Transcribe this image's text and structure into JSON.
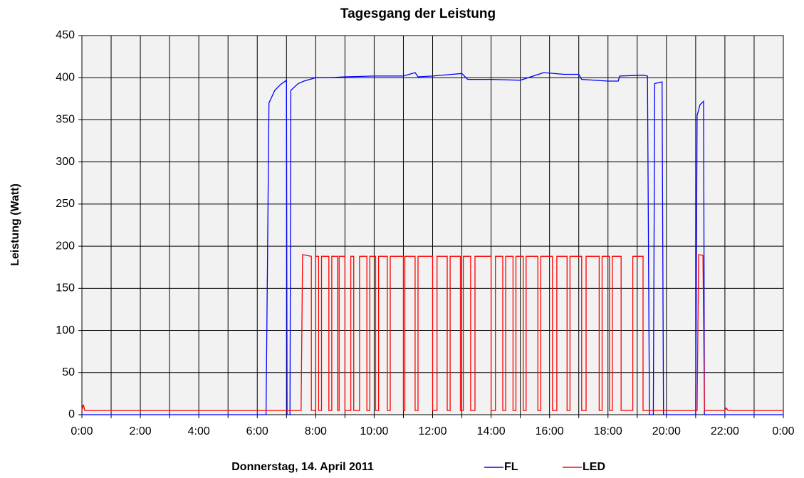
{
  "chart_data": {
    "type": "line",
    "title": "Tagesgang der Leistung",
    "xlabel": "Donnerstag, 14. April 2011",
    "ylabel": "Leistung (Watt)",
    "xlim": [
      0,
      24
    ],
    "ylim": [
      0,
      450
    ],
    "xticks": [
      {
        "value": 0,
        "label": "0:00"
      },
      {
        "value": 2,
        "label": "2:00"
      },
      {
        "value": 4,
        "label": "4:00"
      },
      {
        "value": 6,
        "label": "6:00"
      },
      {
        "value": 8,
        "label": "8:00"
      },
      {
        "value": 10,
        "label": "10:00"
      },
      {
        "value": 12,
        "label": "12:00"
      },
      {
        "value": 14,
        "label": "14:00"
      },
      {
        "value": 16,
        "label": "16:00"
      },
      {
        "value": 18,
        "label": "18:00"
      },
      {
        "value": 20,
        "label": "20:00"
      },
      {
        "value": 22,
        "label": "22:00"
      },
      {
        "value": 24,
        "label": "0:00"
      }
    ],
    "xminor": [
      1,
      3,
      5,
      7,
      9,
      11,
      13,
      15,
      17,
      19,
      21,
      23
    ],
    "yticks": [
      0,
      50,
      100,
      150,
      200,
      250,
      300,
      350,
      400,
      450
    ],
    "grid": true,
    "legend": "bottom",
    "series": [
      {
        "name": "FL",
        "color": "#0000ff",
        "x": [
          0,
          6.3,
          6.4,
          6.6,
          6.8,
          7.0,
          7.02,
          7.12,
          7.15,
          7.4,
          7.6,
          8.0,
          8.5,
          9.0,
          10.0,
          11.0,
          11.4,
          11.5,
          12.0,
          13.0,
          13.2,
          14.0,
          15.0,
          15.8,
          16.5,
          17.0,
          17.1,
          18.0,
          18.35,
          18.4,
          19.2,
          19.35,
          19.42,
          19.55,
          19.6,
          19.85,
          19.9,
          21.0,
          21.05,
          21.15,
          21.27,
          21.3,
          24
        ],
        "values": [
          0,
          0,
          370,
          385,
          392,
          397,
          0,
          0,
          385,
          393,
          396,
          400,
          400,
          401,
          402,
          402,
          406,
          401,
          402,
          405,
          398,
          398,
          397,
          406,
          404,
          404,
          398,
          396,
          396,
          402,
          403,
          402,
          0,
          0,
          393,
          395,
          0,
          0,
          355,
          368,
          372,
          0,
          0
        ]
      },
      {
        "name": "LED",
        "color": "#ff0000",
        "x": [
          0,
          0.05,
          0.1,
          7.5,
          7.55,
          7.85,
          7.85,
          8.0,
          8.0,
          8.1,
          8.1,
          8.2,
          8.2,
          8.45,
          8.45,
          8.55,
          8.55,
          8.75,
          8.75,
          8.8,
          8.8,
          9.0,
          9.0,
          9.2,
          9.2,
          9.3,
          9.3,
          9.5,
          9.5,
          9.75,
          9.75,
          9.85,
          9.85,
          10.05,
          10.05,
          10.15,
          10.15,
          10.45,
          10.45,
          10.55,
          10.55,
          11.0,
          11.0,
          11.05,
          11.05,
          11.4,
          11.4,
          11.5,
          11.5,
          12.0,
          12.0,
          12.15,
          12.15,
          12.5,
          12.5,
          12.6,
          12.6,
          12.95,
          12.95,
          13.05,
          13.05,
          13.3,
          13.3,
          13.45,
          13.45,
          14.0,
          14.0,
          14.15,
          14.15,
          14.4,
          14.4,
          14.5,
          14.5,
          14.75,
          14.75,
          14.85,
          14.85,
          15.1,
          15.1,
          15.2,
          15.2,
          15.6,
          15.6,
          15.7,
          15.7,
          16.1,
          16.1,
          16.25,
          16.25,
          16.6,
          16.6,
          16.7,
          16.7,
          17.1,
          17.1,
          17.25,
          17.25,
          17.7,
          17.7,
          17.8,
          17.8,
          18.05,
          18.05,
          18.15,
          18.15,
          18.45,
          18.45,
          18.85,
          18.85,
          19.2,
          19.2,
          21.05,
          21.1,
          21.25,
          21.3,
          22.0,
          22.05,
          22.1,
          24
        ],
        "values": [
          5,
          12,
          5,
          5,
          190,
          188,
          5,
          5,
          188,
          188,
          5,
          5,
          188,
          188,
          5,
          5,
          188,
          188,
          5,
          5,
          188,
          188,
          5,
          5,
          188,
          188,
          5,
          5,
          188,
          188,
          5,
          5,
          188,
          188,
          5,
          5,
          188,
          188,
          5,
          5,
          188,
          188,
          5,
          5,
          188,
          188,
          5,
          5,
          188,
          188,
          5,
          5,
          188,
          188,
          5,
          5,
          188,
          188,
          5,
          5,
          188,
          188,
          5,
          5,
          188,
          188,
          5,
          5,
          188,
          188,
          5,
          5,
          188,
          188,
          5,
          5,
          188,
          188,
          5,
          5,
          188,
          188,
          5,
          5,
          188,
          188,
          5,
          5,
          188,
          188,
          5,
          5,
          188,
          188,
          5,
          5,
          188,
          188,
          5,
          5,
          188,
          188,
          5,
          5,
          188,
          188,
          5,
          5,
          188,
          188,
          5,
          5,
          190,
          189,
          5,
          5,
          8,
          5,
          5
        ]
      }
    ]
  }
}
